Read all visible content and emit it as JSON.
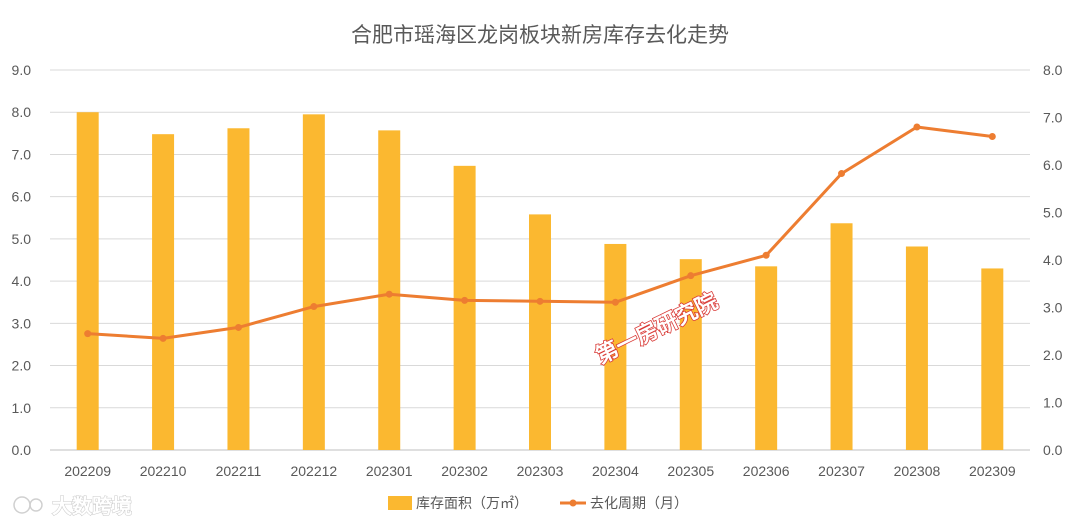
{
  "chart_data": {
    "type": "bar",
    "title": "合肥市瑶海区龙岗板块新房库存去化走势",
    "categories": [
      "202209",
      "202210",
      "202211",
      "202212",
      "202301",
      "202302",
      "202303",
      "202304",
      "202305",
      "202306",
      "202307",
      "202308",
      "202309"
    ],
    "series": [
      {
        "name": "库存面积（万㎡）",
        "type": "bar",
        "axis": "left",
        "color": "#fbb830",
        "values": [
          8.0,
          7.48,
          7.62,
          7.95,
          7.57,
          6.73,
          5.58,
          4.88,
          4.52,
          4.35,
          5.37,
          4.82,
          4.3
        ]
      },
      {
        "name": "去化周期（月）",
        "type": "line",
        "axis": "right",
        "color": "#ed7d31",
        "values": [
          2.45,
          2.35,
          2.58,
          3.02,
          3.28,
          3.15,
          3.13,
          3.11,
          3.67,
          4.1,
          5.82,
          6.8,
          6.6
        ]
      }
    ],
    "ylim_left": [
      0,
      9
    ],
    "ylim_right": [
      0,
      8
    ],
    "yticks_left": [
      "0.0",
      "1.0",
      "2.0",
      "3.0",
      "4.0",
      "5.0",
      "6.0",
      "7.0",
      "8.0",
      "9.0"
    ],
    "yticks_right": [
      "0.0",
      "1.0",
      "2.0",
      "3.0",
      "4.0",
      "5.0",
      "6.0",
      "7.0",
      "8.0"
    ],
    "grid": true,
    "legend": "bottom"
  },
  "watermarks": {
    "center": "第一房研究院",
    "corner": "大数跨境"
  }
}
